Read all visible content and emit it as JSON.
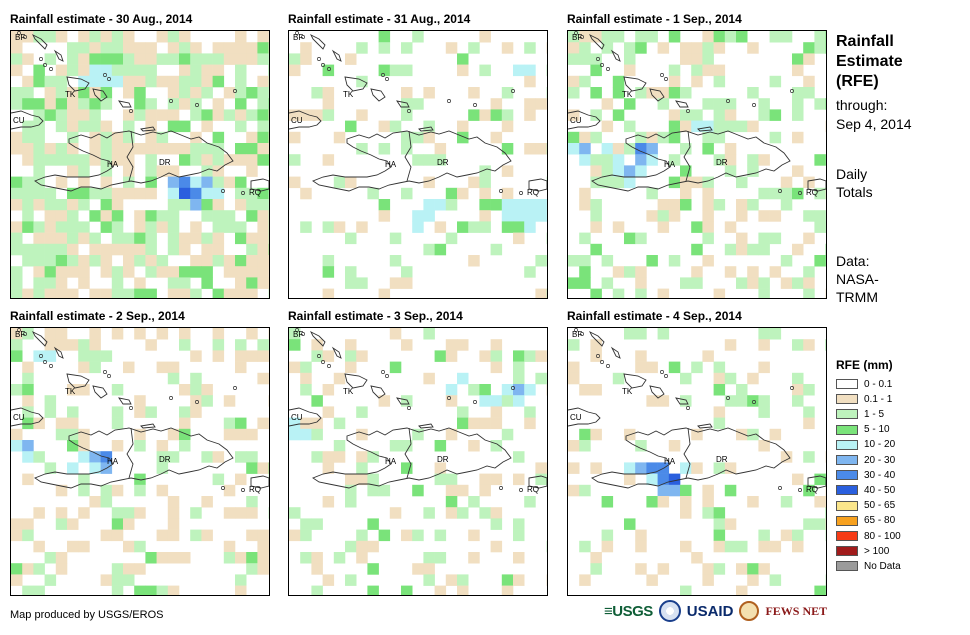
{
  "panels": [
    {
      "title": "Rainfall estimate - 30 Aug., 2014",
      "seed": 11,
      "density": 0.72,
      "wet": 0.55,
      "hot": [
        [
          15,
          14,
          7
        ],
        [
          16,
          14,
          6
        ],
        [
          15,
          13,
          6
        ],
        [
          17,
          13,
          5
        ],
        [
          14,
          13,
          5
        ],
        [
          18,
          14,
          4
        ],
        [
          16,
          15,
          5
        ],
        [
          14,
          14,
          4
        ],
        [
          17,
          14,
          4
        ],
        [
          16,
          13,
          4
        ],
        [
          7,
          4,
          4
        ],
        [
          8,
          3,
          4
        ],
        [
          7,
          3,
          4
        ],
        [
          9,
          4,
          4
        ],
        [
          6,
          4,
          4
        ],
        [
          8,
          4,
          4
        ]
      ]
    },
    {
      "title": "Rainfall estimate - 31 Aug., 2014",
      "seed": 23,
      "density": 0.22,
      "wet": 0.55,
      "hot": [
        [
          20,
          15,
          4
        ],
        [
          21,
          15,
          4
        ],
        [
          19,
          16,
          4
        ],
        [
          22,
          16,
          4
        ],
        [
          21,
          16,
          4
        ],
        [
          20,
          16,
          4
        ],
        [
          12,
          16,
          4
        ],
        [
          13,
          15,
          4
        ],
        [
          12,
          15,
          4
        ],
        [
          11,
          16,
          4
        ],
        [
          21,
          17,
          4
        ],
        [
          22,
          15,
          4
        ],
        [
          19,
          15,
          4
        ],
        [
          11,
          17,
          4
        ],
        [
          20,
          3,
          4
        ],
        [
          21,
          3,
          4
        ]
      ]
    },
    {
      "title": "Rainfall estimate - 1 Sep., 2014",
      "seed": 37,
      "density": 0.38,
      "wet": 0.6,
      "hot": [
        [
          6,
          10,
          6
        ],
        [
          6,
          11,
          5
        ],
        [
          7,
          10,
          5
        ],
        [
          4,
          11,
          4
        ],
        [
          5,
          12,
          5
        ],
        [
          5,
          13,
          4
        ],
        [
          6,
          12,
          4
        ],
        [
          4,
          12,
          4
        ],
        [
          7,
          11,
          4
        ],
        [
          3,
          10,
          4
        ],
        [
          1,
          10,
          5
        ],
        [
          1,
          11,
          4
        ],
        [
          0,
          10,
          4
        ],
        [
          12,
          8,
          4
        ],
        [
          11,
          8,
          4
        ]
      ]
    },
    {
      "title": "Rainfall estimate - 2 Sep., 2014",
      "seed": 53,
      "density": 0.32,
      "wet": 0.45,
      "hot": [
        [
          7,
          11,
          5
        ],
        [
          8,
          11,
          6
        ],
        [
          8,
          12,
          5
        ],
        [
          7,
          12,
          4
        ],
        [
          0,
          10,
          4
        ],
        [
          1,
          10,
          5
        ],
        [
          1,
          11,
          4
        ],
        [
          5,
          12,
          4
        ],
        [
          6,
          11,
          4
        ],
        [
          2,
          2,
          4
        ],
        [
          3,
          2,
          4
        ]
      ]
    },
    {
      "title": "Rainfall estimate - 3 Sep., 2014",
      "seed": 71,
      "density": 0.28,
      "wet": 0.5,
      "hot": [
        [
          19,
          5,
          4
        ],
        [
          20,
          5,
          5
        ],
        [
          20,
          6,
          4
        ],
        [
          21,
          5,
          4
        ],
        [
          17,
          6,
          4
        ],
        [
          18,
          6,
          4
        ],
        [
          0,
          9,
          4
        ],
        [
          1,
          9,
          4
        ],
        [
          0,
          8,
          4
        ],
        [
          15,
          4,
          4
        ],
        [
          14,
          5,
          4
        ]
      ]
    },
    {
      "title": "Rainfall estimate - 4 Sep., 2014",
      "seed": 89,
      "density": 0.25,
      "wet": 0.45,
      "hot": [
        [
          7,
          12,
          6
        ],
        [
          8,
          12,
          6
        ],
        [
          9,
          13,
          7
        ],
        [
          8,
          13,
          6
        ],
        [
          9,
          14,
          5
        ],
        [
          6,
          12,
          5
        ],
        [
          10,
          12,
          4
        ],
        [
          7,
          13,
          4
        ],
        [
          5,
          12,
          4
        ],
        [
          8,
          14,
          5
        ]
      ]
    }
  ],
  "map_labels": {
    "bf": "BF",
    "tk": "TK",
    "cu": "CU",
    "ha": "HA",
    "dr": "DR",
    "rq": "RQ"
  },
  "side": {
    "title_line1": "Rainfall",
    "title_line2": "Estimate",
    "title_line3": "(RFE)",
    "through": "through:",
    "date": "Sep 4, 2014",
    "daily1": "Daily",
    "daily2": "Totals",
    "data1": "Data:",
    "data2": "NASA-",
    "data3": "TRMM"
  },
  "legend": {
    "title": "RFE (mm)",
    "items": [
      {
        "label": "0 - 0.1",
        "color": "#ffffff"
      },
      {
        "label": "0.1 - 1",
        "color": "#f1dfc1"
      },
      {
        "label": "1 - 5",
        "color": "#bef3bd"
      },
      {
        "label": "5 - 10",
        "color": "#7ae37a"
      },
      {
        "label": "10 - 20",
        "color": "#b9f2f5"
      },
      {
        "label": "20 - 30",
        "color": "#7fb6f0"
      },
      {
        "label": "30 - 40",
        "color": "#4b8ae8"
      },
      {
        "label": "40 - 50",
        "color": "#2a5fde"
      },
      {
        "label": "50 - 65",
        "color": "#fbe68b"
      },
      {
        "label": "65 - 80",
        "color": "#f7a11f"
      },
      {
        "label": "80 - 100",
        "color": "#f63b16"
      },
      {
        "label": "> 100",
        "color": "#a11b1b"
      },
      {
        "label": "No Data",
        "color": "#9b9b9b"
      }
    ]
  },
  "credit": "Map produced by USGS/EROS",
  "logos": {
    "usgs": "≡USGS",
    "usaid": "USAID",
    "fews": "FEWS NET"
  }
}
